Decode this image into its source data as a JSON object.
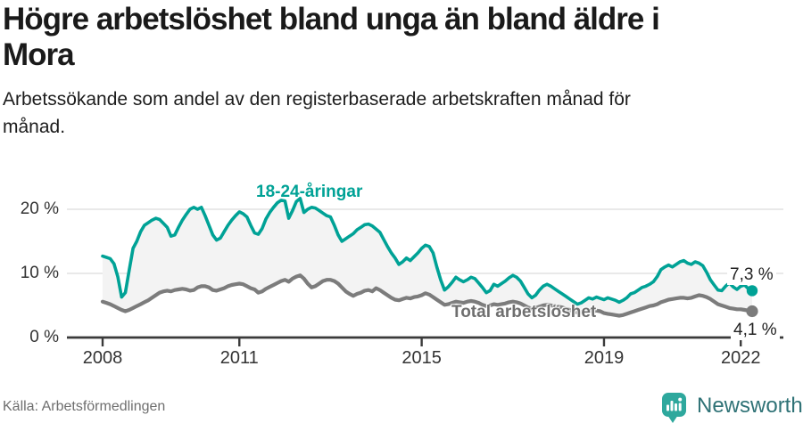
{
  "header": {
    "title_line1": "Högre arbetslöshet bland unga än bland äldre i",
    "title_line2": "Mora",
    "subtitle_line1": "Arbetssökande som andel av den registerbaserade arbetskraften månad för",
    "subtitle_line2": "månad."
  },
  "footer": {
    "source": "Källa: Arbetsförmedlingen",
    "brand": "Newsworthy",
    "brand_icon": "bar-chart-pin-icon"
  },
  "colors": {
    "youth": "#00a296",
    "total": "#7c7c7c",
    "band": "#f3f3f3",
    "grid": "#dcdcdc",
    "axis": "#3a3a3a",
    "brand_teal": "#2ea89d",
    "brand_text": "#2f7276"
  },
  "chart_data": {
    "type": "line",
    "frequency": "monthly",
    "start": "2008-01",
    "end": "2022-04",
    "unit": "%",
    "ylim": [
      0,
      22
    ],
    "grid": "horizontal",
    "legend_position": "inline-labels",
    "y_ticks": [
      {
        "label": "20 %",
        "value": 20
      },
      {
        "label": "10 %",
        "value": 10
      },
      {
        "label": "0 %",
        "value": 0
      }
    ],
    "x_ticks": [
      {
        "label": "2008",
        "month_index": 0
      },
      {
        "label": "2011",
        "month_index": 36
      },
      {
        "label": "2015",
        "month_index": 84
      },
      {
        "label": "2019",
        "month_index": 132
      },
      {
        "label": "2022",
        "month_index": 168
      }
    ],
    "series": [
      {
        "name": "18-24-åringar",
        "end_label": "7,3 %",
        "end_value": 7.3,
        "values": [
          12.7,
          12.5,
          12.3,
          11.5,
          9.5,
          6.3,
          7.0,
          10.5,
          13.9,
          15.0,
          16.5,
          17.5,
          17.9,
          18.3,
          18.6,
          18.4,
          17.8,
          17.2,
          15.8,
          16.0,
          17.2,
          18.3,
          19.2,
          20.0,
          20.3,
          20.0,
          20.3,
          19.0,
          17.5,
          16.0,
          15.2,
          15.5,
          16.5,
          17.5,
          18.3,
          19.0,
          19.6,
          19.3,
          18.8,
          17.5,
          16.3,
          16.1,
          17.0,
          18.5,
          19.5,
          20.3,
          21.0,
          21.4,
          21.3,
          18.6,
          19.8,
          21.2,
          21.7,
          19.5,
          20.0,
          20.3,
          20.2,
          19.8,
          19.4,
          19.0,
          18.8,
          17.5,
          16.0,
          15.0,
          15.4,
          15.8,
          16.2,
          16.8,
          17.2,
          17.6,
          17.7,
          17.4,
          16.9,
          16.4,
          15.3,
          14.2,
          13.2,
          12.4,
          11.4,
          11.8,
          12.4,
          12.0,
          12.6,
          13.2,
          13.9,
          14.4,
          14.2,
          13.2,
          11.0,
          9.0,
          7.4,
          7.9,
          8.6,
          9.4,
          9.0,
          8.7,
          9.0,
          9.4,
          9.2,
          8.5,
          7.8,
          7.0,
          7.3,
          8.3,
          8.0,
          8.4,
          8.8,
          9.3,
          9.7,
          9.4,
          8.8,
          7.8,
          6.8,
          6.2,
          6.6,
          7.4,
          8.0,
          8.3,
          8.0,
          7.6,
          7.2,
          6.8,
          6.4,
          6.0,
          5.6,
          5.2,
          5.4,
          5.8,
          6.2,
          6.0,
          6.3,
          6.1,
          5.9,
          6.2,
          6.0,
          5.8,
          5.5,
          5.8,
          6.2,
          6.8,
          7.0,
          7.4,
          7.8,
          8.0,
          8.3,
          8.7,
          9.5,
          10.6,
          11.0,
          11.3,
          11.0,
          11.4,
          11.8,
          12.0,
          11.6,
          11.4,
          11.8,
          11.6,
          11.2,
          10.2,
          9.0,
          8.2,
          7.4,
          7.3,
          8.0,
          8.5,
          7.9,
          7.5,
          8.0,
          8.2,
          7.6,
          7.3
        ]
      },
      {
        "name": "Total arbetslöshet",
        "end_label": "4,1 %",
        "end_value": 4.1,
        "values": [
          5.6,
          5.4,
          5.2,
          4.9,
          4.6,
          4.3,
          4.1,
          4.3,
          4.6,
          4.9,
          5.2,
          5.5,
          5.8,
          6.2,
          6.6,
          7.0,
          7.2,
          7.3,
          7.2,
          7.4,
          7.5,
          7.6,
          7.5,
          7.3,
          7.4,
          7.8,
          8.0,
          8.0,
          7.8,
          7.4,
          7.3,
          7.5,
          7.7,
          8.0,
          8.2,
          8.3,
          8.4,
          8.3,
          8.0,
          7.7,
          7.5,
          7.0,
          7.2,
          7.6,
          7.9,
          8.2,
          8.5,
          8.8,
          9.0,
          8.7,
          9.2,
          9.5,
          9.7,
          9.2,
          8.4,
          7.8,
          8.0,
          8.4,
          8.8,
          9.0,
          9.0,
          8.8,
          8.4,
          7.8,
          7.2,
          6.8,
          6.5,
          6.8,
          7.0,
          7.3,
          7.4,
          7.2,
          7.7,
          7.4,
          7.0,
          6.6,
          6.2,
          5.9,
          5.8,
          6.0,
          6.2,
          6.1,
          6.3,
          6.4,
          6.6,
          6.9,
          6.7,
          6.3,
          5.9,
          5.5,
          5.1,
          5.2,
          5.4,
          5.6,
          5.5,
          5.4,
          5.6,
          5.7,
          5.6,
          5.4,
          5.1,
          4.9,
          5.0,
          5.2,
          5.1,
          5.2,
          5.3,
          5.5,
          5.6,
          5.5,
          5.3,
          5.0,
          4.7,
          4.5,
          4.6,
          4.8,
          5.0,
          5.1,
          5.0,
          4.9,
          4.8,
          4.7,
          4.5,
          4.3,
          4.1,
          3.9,
          4.0,
          4.1,
          4.2,
          4.1,
          4.2,
          4.1,
          3.8,
          3.7,
          3.6,
          3.5,
          3.4,
          3.5,
          3.7,
          3.9,
          4.1,
          4.3,
          4.5,
          4.7,
          4.9,
          5.0,
          5.2,
          5.5,
          5.7,
          5.9,
          6.0,
          6.1,
          6.2,
          6.2,
          6.1,
          6.2,
          6.4,
          6.6,
          6.5,
          6.3,
          6.0,
          5.6,
          5.2,
          5.0,
          4.8,
          4.6,
          4.5,
          4.4,
          4.4,
          4.3,
          4.2,
          4.1
        ]
      }
    ]
  }
}
